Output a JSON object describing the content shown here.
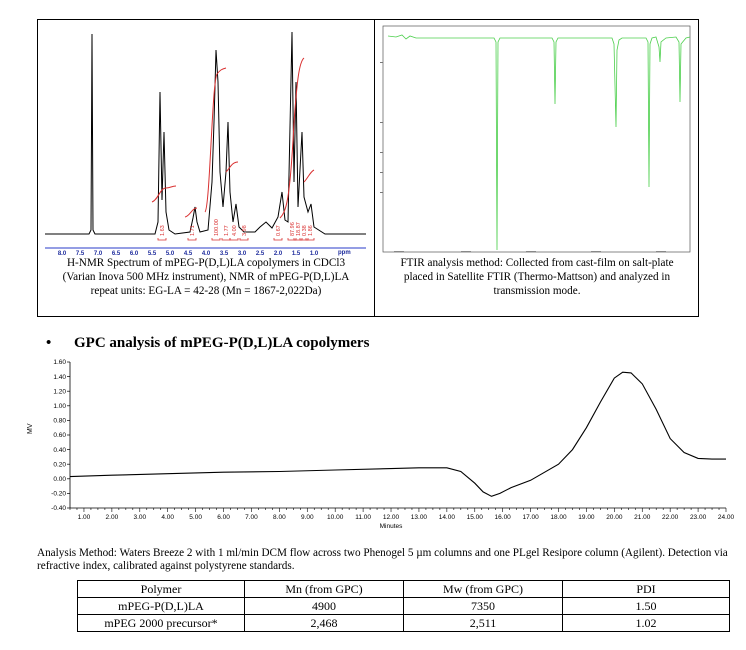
{
  "nmr": {
    "caption_lines": [
      "H-NMR Spectrum of mPEG-P(D,L)LA copolymers in CDCl3",
      "(Varian Inova 500 MHz instrument), NMR of mPEG-P(D,L)LA",
      "repeat units: EG-LA = 42-28 (Mn = 1867-2,022Da)"
    ],
    "axis_unit": "ppm",
    "ticks": [
      "8.0",
      "7.5",
      "7.0",
      "6.5",
      "6.0",
      "5.5",
      "5.0",
      "4.5",
      "4.0",
      "3.5",
      "3.0",
      "2.5",
      "2.0",
      "1.5",
      "1.0"
    ],
    "integrals": [
      "1.63",
      "1.71",
      "100.00",
      "1.77",
      "4.00",
      "3.98",
      "0.67",
      "87.96",
      "18.87",
      "0.38",
      "1.86"
    ]
  },
  "ftir": {
    "caption_lines": [
      "FTIR analysis method: Collected from cast-film on salt-plate",
      "placed in Satellite FTIR (Thermo-Mattson) and analyzed in",
      "transmission mode."
    ],
    "colors": {
      "trace": "#4ccf4c"
    }
  },
  "gpc": {
    "bullet": "•",
    "heading": "GPC analysis of mPEG-P(D,L)LA copolymers",
    "chart_data": {
      "type": "line",
      "title": "",
      "xlabel": "Minutes",
      "ylabel": "MV",
      "xlim": [
        0.5,
        24.0
      ],
      "ylim": [
        -0.4,
        1.6
      ],
      "x_ticks": [
        "1.00",
        "2.00",
        "3.00",
        "4.00",
        "5.00",
        "6.00",
        "7.00",
        "8.00",
        "9.00",
        "10.00",
        "11.00",
        "12.00",
        "13.00",
        "14.00",
        "15.00",
        "16.00",
        "17.00",
        "18.00",
        "19.00",
        "20.00",
        "21.00",
        "22.00",
        "23.00",
        "24.00"
      ],
      "y_ticks": [
        "1.60",
        "1.40",
        "1.20",
        "1.00",
        "0.80",
        "0.60",
        "0.40",
        "0.20",
        "0.00",
        "-0.20",
        "-0.40"
      ],
      "series": [
        {
          "x": [
            0.5,
            2,
            4,
            6,
            8,
            10,
            12,
            13,
            14,
            14.5,
            15,
            15.3,
            15.6,
            15.9,
            16.3,
            17,
            18,
            18.5,
            19,
            19.5,
            20,
            20.3,
            20.6,
            21,
            21.5,
            22,
            22.5,
            23,
            23.5,
            24
          ],
          "y": [
            0.03,
            0.05,
            0.07,
            0.09,
            0.1,
            0.12,
            0.14,
            0.15,
            0.15,
            0.1,
            -0.06,
            -0.18,
            -0.24,
            -0.2,
            -0.12,
            -0.02,
            0.2,
            0.4,
            0.7,
            1.05,
            1.38,
            1.46,
            1.45,
            1.3,
            0.95,
            0.55,
            0.36,
            0.28,
            0.27,
            0.27
          ]
        }
      ]
    },
    "method_text": "Analysis Method: Waters Breeze 2 with 1 ml/min DCM flow across two Phenogel 5 µm columns and one PLgel Resipore column (Agilent). Detection via refractive index, calibrated against polystyrene standards.",
    "table": {
      "headers": [
        "Polymer",
        "Mn (from GPC)",
        "Mw (from GPC)",
        "PDI"
      ],
      "rows": [
        [
          "mPEG-P(D,L)LA",
          "4900",
          "7350",
          "1.50"
        ],
        [
          "mPEG 2000 precursor*",
          "2,468",
          "2,511",
          "1.02"
        ]
      ]
    }
  }
}
